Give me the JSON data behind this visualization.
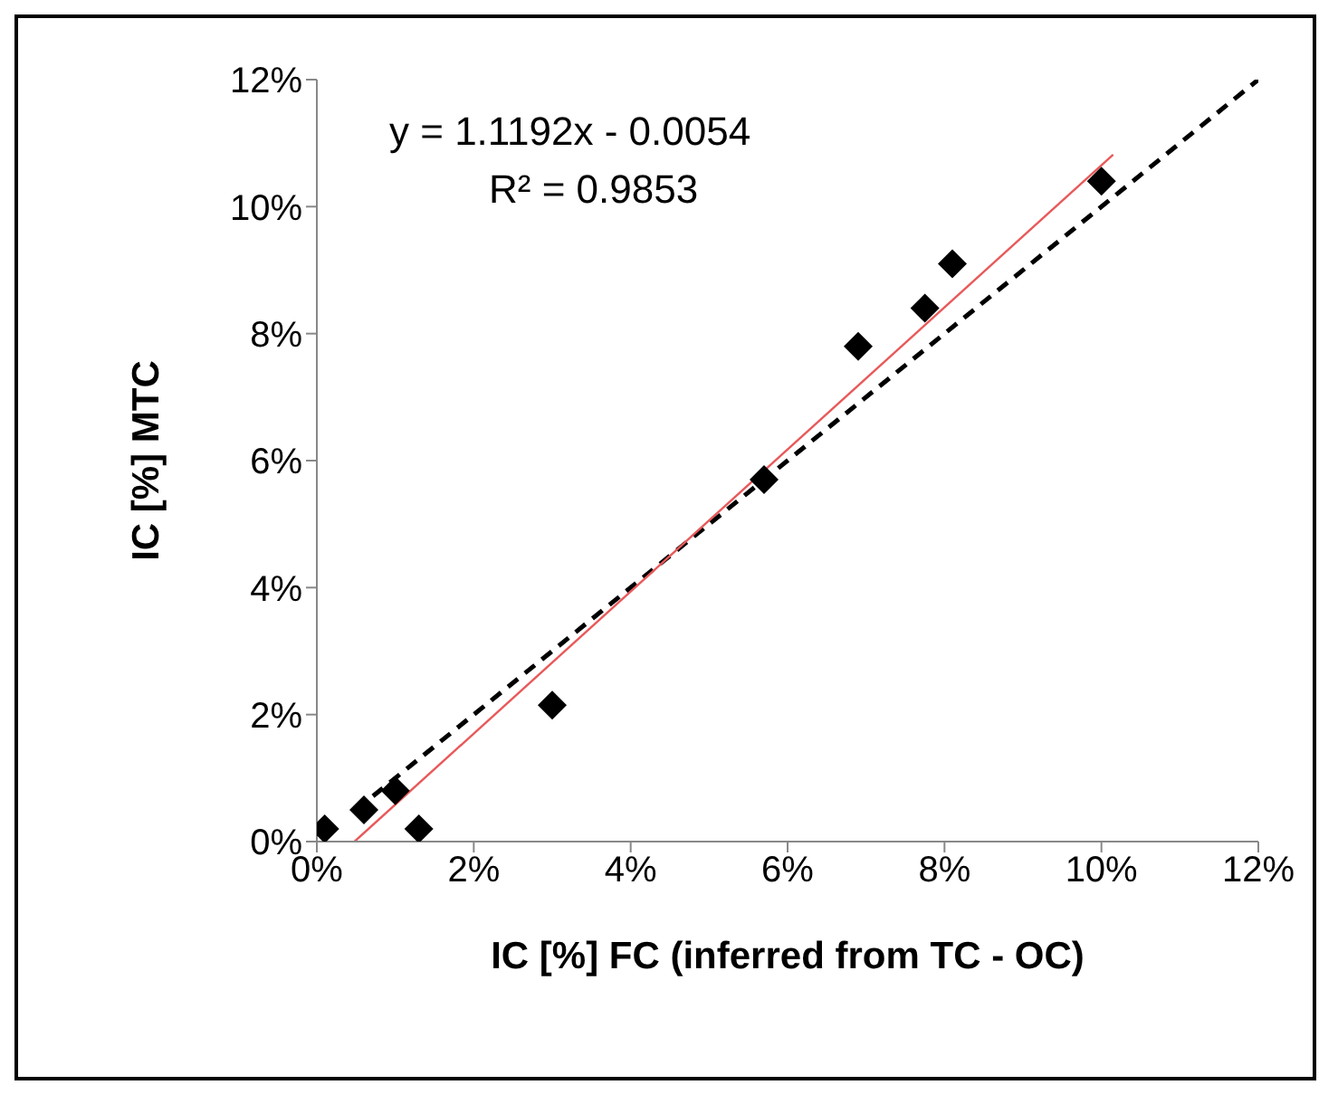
{
  "chart_data": {
    "type": "scatter",
    "xlabel": "IC [%] FC (inferred from TC - OC)",
    "ylabel": "IC [%] MTC",
    "xlim": [
      0,
      12
    ],
    "ylim": [
      0,
      12
    ],
    "xticks": [
      {
        "value": 0,
        "label": "0%"
      },
      {
        "value": 2,
        "label": "2%"
      },
      {
        "value": 4,
        "label": "4%"
      },
      {
        "value": 6,
        "label": "6%"
      },
      {
        "value": 8,
        "label": "8%"
      },
      {
        "value": 10,
        "label": "10%"
      },
      {
        "value": 12,
        "label": "12%"
      }
    ],
    "yticks": [
      {
        "value": 0,
        "label": "0%"
      },
      {
        "value": 2,
        "label": "2%"
      },
      {
        "value": 4,
        "label": "4%"
      },
      {
        "value": 6,
        "label": "6%"
      },
      {
        "value": 8,
        "label": "8%"
      },
      {
        "value": 10,
        "label": "10%"
      },
      {
        "value": 12,
        "label": "12%"
      }
    ],
    "marker": "diamond",
    "annotations": [
      "y = 1.1192x - 0.0054",
      "R² = 0.9853"
    ],
    "series": [
      {
        "color": "#000000",
        "x": [
          0.1,
          0.6,
          1.0,
          1.3,
          3.0,
          5.7,
          6.9,
          7.75,
          8.1,
          10.0
        ],
        "values": [
          0.2,
          0.5,
          0.8,
          0.2,
          2.15,
          5.7,
          7.8,
          8.4,
          9.1,
          10.4
        ]
      },
      {
        "type": "line",
        "color": "#000000",
        "line_style": "dashed",
        "marker": "none",
        "x": [
          0.5,
          12
        ],
        "values": [
          0.5,
          12
        ]
      },
      {
        "type": "line",
        "color": "#e8595a",
        "line_style": "solid",
        "marker": "none",
        "x": [
          0.48,
          10.15
        ],
        "values": [
          0,
          10.82
        ]
      }
    ]
  }
}
